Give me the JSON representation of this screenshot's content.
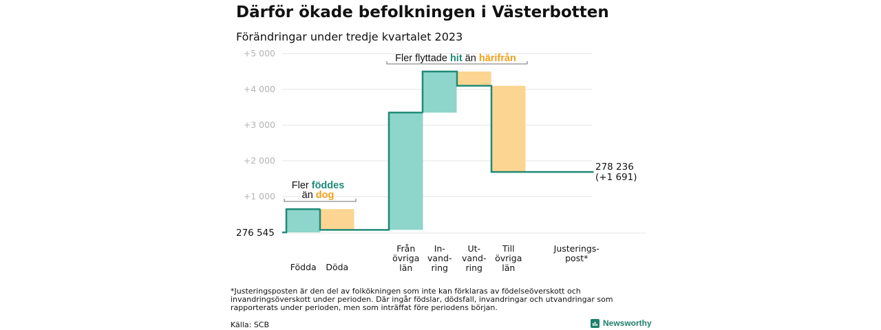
{
  "title": "Därför ökade befolkningen i Västerbotten",
  "subtitle": "Förändringar under tredje kvartalet 2023",
  "colors": {
    "positive": "#8ed5cb",
    "negative": "#fbd591",
    "line": "#1e8a76",
    "grid": "#e3e3e3"
  },
  "chart_data": {
    "type": "waterfall",
    "title": "Därför ökade befolkningen i Västerbotten",
    "subtitle": "Förändringar under tredje kvartalet 2023",
    "start_value": 276545,
    "start_label": "276 545",
    "end_value": 278236,
    "end_label": "278 236",
    "end_change_label": "(+1 691)",
    "y_ticks": [
      {
        "value": 1000,
        "label": "+1 000"
      },
      {
        "value": 2000,
        "label": "+2 000"
      },
      {
        "value": 3000,
        "label": "+3 000"
      },
      {
        "value": 4000,
        "label": "+4 000"
      },
      {
        "value": 5000,
        "label": "+5 000"
      }
    ],
    "ylim": [
      0,
      5000
    ],
    "grid": true,
    "steps": [
      {
        "label_lines": [
          "Födda"
        ],
        "change": 650
      },
      {
        "label_lines": [
          "Döda"
        ],
        "change": -580
      },
      {
        "label_lines": [
          "Från",
          "övriga",
          "län"
        ],
        "change": 3280
      },
      {
        "label_lines": [
          "In-",
          "vand-",
          "ring"
        ],
        "change": 1150
      },
      {
        "label_lines": [
          "Ut-",
          "vand-",
          "ring"
        ],
        "change": -400
      },
      {
        "label_lines": [
          "Till",
          "övriga",
          "län"
        ],
        "change": -2410
      },
      {
        "label_lines": [
          "Justerings-",
          "post*"
        ],
        "change": 0
      }
    ],
    "annotations": [
      {
        "id": "births",
        "line1_prefix": "Fler ",
        "line1_highlight": "föddes",
        "line2_prefix": "än ",
        "line2_highlight": "dog"
      },
      {
        "id": "migration",
        "prefix": "Fler flyttade ",
        "highlight1": "hit",
        "middle": " än ",
        "highlight2": "härifrån"
      }
    ]
  },
  "footnote": "*Justeringsposten är den del av folkökningen som inte kan förklaras av födelseöverskott och invandringsöverskott under perioden. Där ingår födslar, dödsfall, invandringar och utvandringar som rapporterats under perioden, men som inträffat före periodens början.",
  "source": "Källa: SCB",
  "brand": "Newsworthy"
}
